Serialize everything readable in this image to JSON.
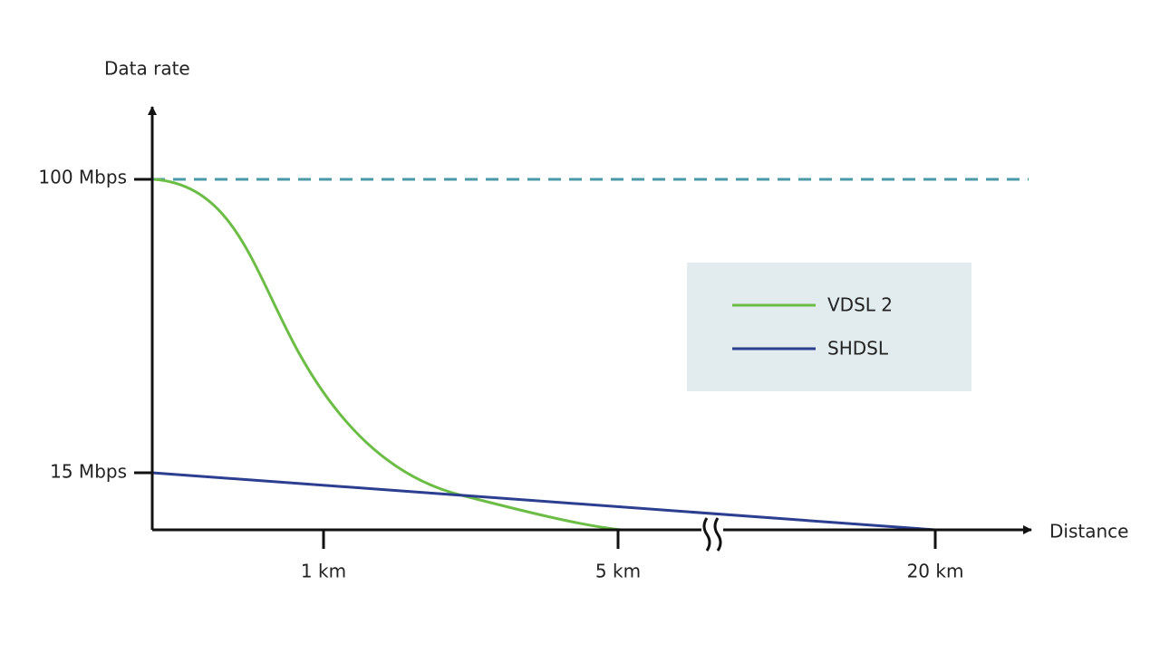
{
  "axes": {
    "y_label": "Data rate",
    "x_label": "Distance",
    "y_ticks": [
      "100 Mbps",
      "15 Mbps"
    ],
    "x_ticks": [
      "1 km",
      "5 km",
      "20 km"
    ]
  },
  "legend": [
    {
      "label": "VDSL 2",
      "color": "#6cbd45"
    },
    {
      "label": "SHDSL",
      "color": "#2c3e8f"
    }
  ]
}
